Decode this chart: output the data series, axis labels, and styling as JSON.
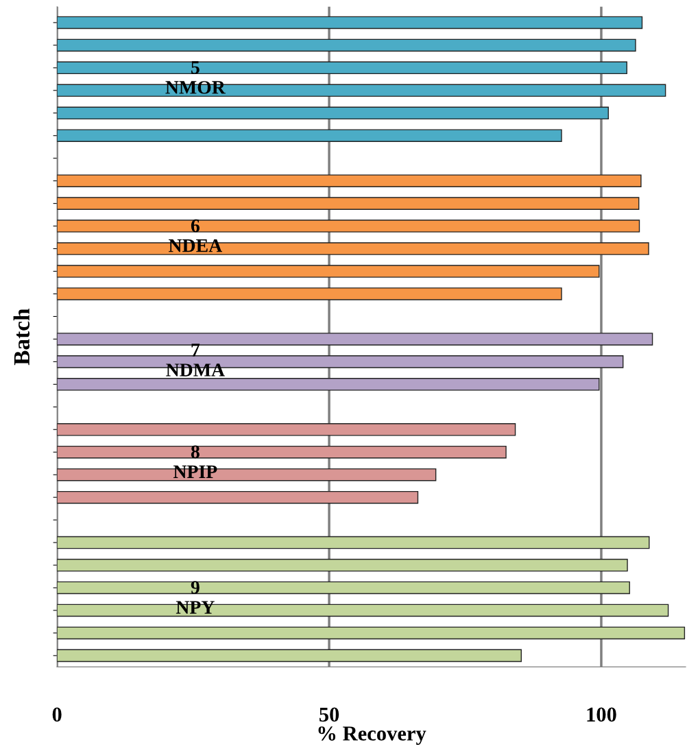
{
  "chart_data": {
    "type": "bar",
    "orientation": "horizontal",
    "xlabel": "% Recovery",
    "ylabel": "Batch",
    "categories": [
      null,
      null,
      null,
      null,
      null,
      null,
      null,
      null,
      null,
      null,
      null,
      null,
      null,
      null,
      null,
      null,
      null,
      null,
      null,
      null,
      null,
      null,
      null,
      null,
      null,
      null,
      null,
      null,
      null
    ],
    "series": [
      {
        "name": "5\nNMOR",
        "color": "#4bacc6",
        "values": [
          107.5,
          106.3,
          104.7,
          111.8,
          101.3,
          92.7,
          null,
          null,
          null,
          null,
          null,
          null,
          null,
          null,
          null,
          null,
          null,
          null,
          null,
          null,
          null,
          null,
          null,
          null,
          null,
          null,
          null,
          null,
          null
        ]
      },
      {
        "name": "6\nNDEA",
        "color": "#f79646",
        "values": [
          null,
          null,
          null,
          null,
          null,
          null,
          null,
          107.3,
          106.9,
          107.0,
          108.7,
          99.6,
          92.7,
          null,
          null,
          null,
          null,
          null,
          null,
          null,
          null,
          null,
          null,
          null,
          null,
          null,
          null,
          null,
          null
        ]
      },
      {
        "name": "7\nNDMA",
        "color": "#b3a2c7",
        "values": [
          null,
          null,
          null,
          null,
          null,
          null,
          null,
          null,
          null,
          null,
          null,
          null,
          null,
          null,
          109.4,
          104.0,
          99.6,
          null,
          null,
          null,
          null,
          null,
          null,
          null,
          null,
          null,
          null,
          null,
          null
        ]
      },
      {
        "name": "8\nNPIP",
        "color": "#d99694",
        "values": [
          null,
          null,
          null,
          null,
          null,
          null,
          null,
          null,
          null,
          null,
          null,
          null,
          null,
          null,
          null,
          null,
          null,
          null,
          84.2,
          82.5,
          69.6,
          66.3,
          null,
          null,
          null,
          null,
          null,
          null,
          null
        ]
      },
      {
        "name": "9\nNPY",
        "color": "#c3d69b",
        "values": [
          null,
          null,
          null,
          null,
          null,
          null,
          null,
          null,
          null,
          null,
          null,
          null,
          null,
          null,
          null,
          null,
          null,
          null,
          null,
          null,
          null,
          null,
          null,
          108.8,
          104.8,
          105.2,
          112.3,
          115.3,
          85.3
        ]
      }
    ],
    "xlim": [
      0,
      115.5
    ],
    "xticks": [
      0,
      50,
      100
    ],
    "grid": "x",
    "tick_labels": "x",
    "legend": false
  }
}
